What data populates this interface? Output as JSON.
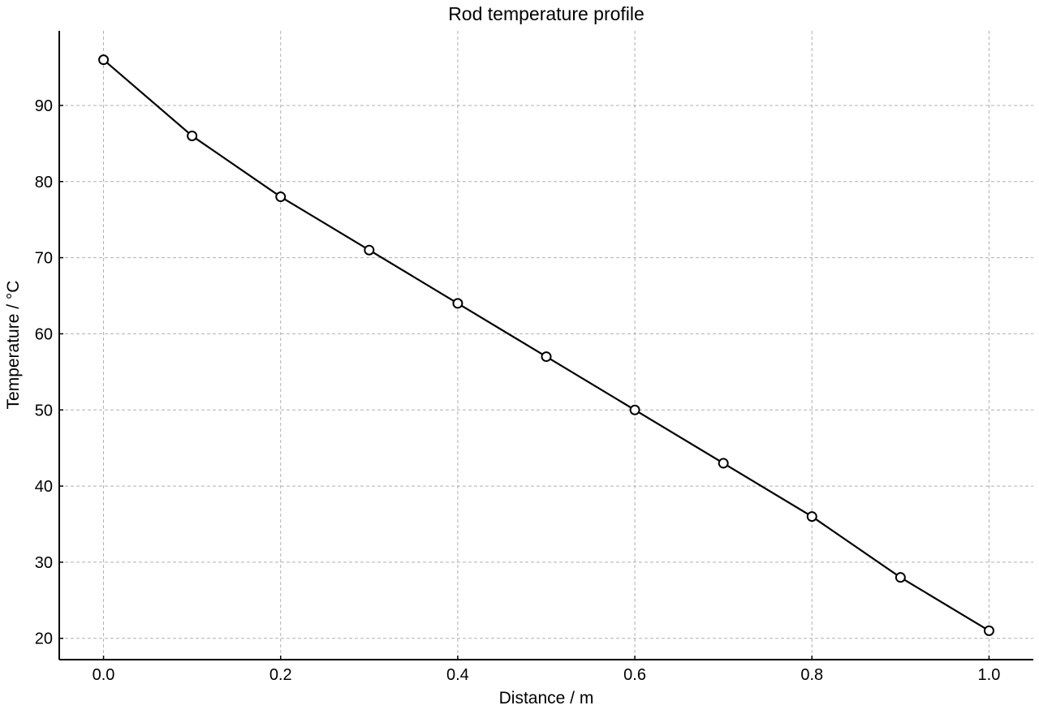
{
  "chart_data": {
    "type": "line",
    "title": "Rod temperature profile",
    "xlabel": "Distance / m",
    "ylabel": "Temperature / °C",
    "xlim": [
      -0.05,
      1.05
    ],
    "ylim": [
      17.2,
      99.8
    ],
    "x_ticks": [
      0.0,
      0.2,
      0.4,
      0.6,
      0.8,
      1.0
    ],
    "x_tick_labels": [
      "0.0",
      "0.2",
      "0.4",
      "0.6",
      "0.8",
      "1.0"
    ],
    "y_ticks": [
      20,
      30,
      40,
      50,
      60,
      70,
      80,
      90
    ],
    "y_tick_labels": [
      "20",
      "30",
      "40",
      "50",
      "60",
      "70",
      "80",
      "90"
    ],
    "grid": true,
    "x": [
      0.0,
      0.1,
      0.2,
      0.3,
      0.4,
      0.5,
      0.6,
      0.7,
      0.8,
      0.9,
      1.0
    ],
    "series": [
      {
        "values": [
          96,
          86,
          78,
          71,
          64,
          57,
          50,
          43,
          36,
          28,
          21
        ],
        "color": "#000000",
        "marker": "open-circle"
      }
    ]
  }
}
